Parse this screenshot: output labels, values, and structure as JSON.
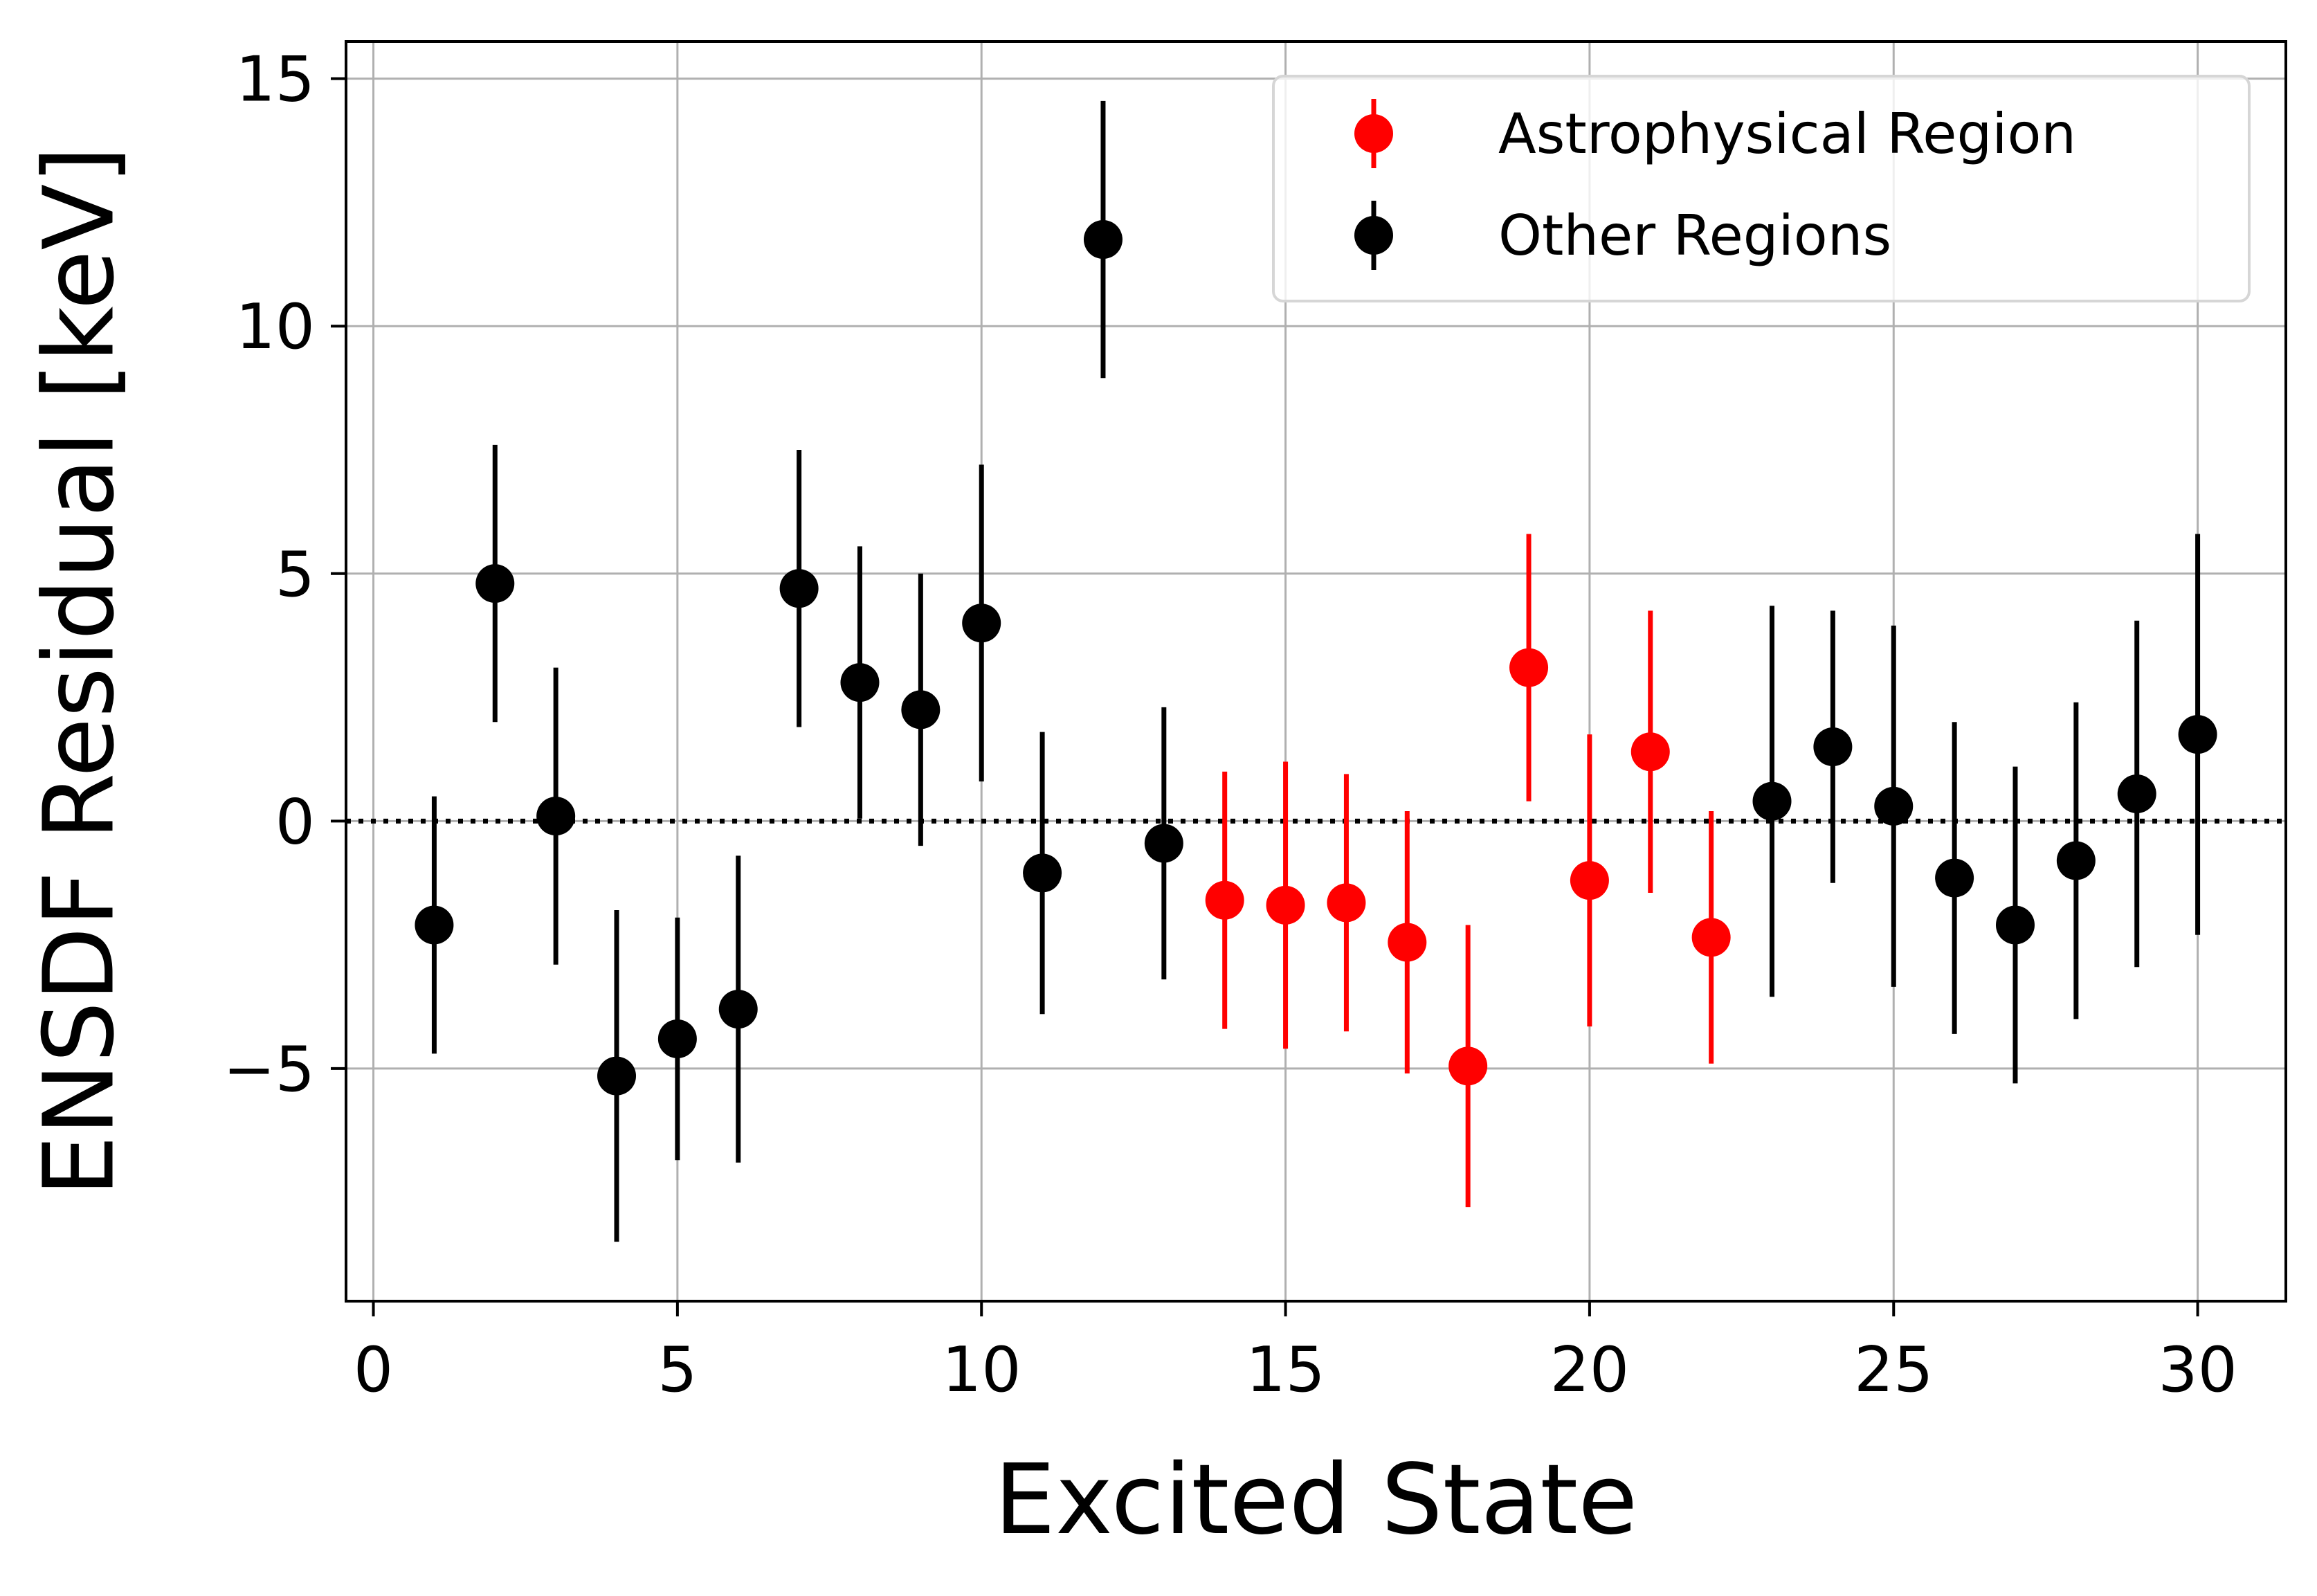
{
  "chart_data": {
    "type": "scatter",
    "xlabel": "Excited State",
    "ylabel": "ENSDF Residual [keV]",
    "xlim": [
      -0.45,
      31.45
    ],
    "ylim": [
      -9.7,
      15.75
    ],
    "x_ticks": [
      0,
      5,
      10,
      15,
      20,
      25,
      30
    ],
    "x_tick_labels": [
      "0",
      "5",
      "10",
      "15",
      "20",
      "25",
      "30"
    ],
    "y_ticks": [
      -5,
      0,
      5,
      10,
      15
    ],
    "y_tick_labels": [
      "−5",
      "0",
      "5",
      "10",
      "15"
    ],
    "grid": true,
    "legend_position": "top-right",
    "reference_line": {
      "y": 0,
      "style": "dotted",
      "color": "#000000"
    },
    "series": [
      {
        "name": "Astrophysical Region",
        "color": "#ff0000",
        "points": [
          {
            "x": 14,
            "y": -1.6,
            "err": 2.6
          },
          {
            "x": 15,
            "y": -1.7,
            "err": 2.9
          },
          {
            "x": 16,
            "y": -1.65,
            "err": 2.6
          },
          {
            "x": 17,
            "y": -2.45,
            "err": 2.65
          },
          {
            "x": 18,
            "y": -4.95,
            "err": 2.85
          },
          {
            "x": 19,
            "y": 3.1,
            "err": 2.7
          },
          {
            "x": 20,
            "y": -1.2,
            "err": 2.95
          },
          {
            "x": 21,
            "y": 1.4,
            "err": 2.85
          },
          {
            "x": 22,
            "y": -2.35,
            "err": 2.55
          }
        ]
      },
      {
        "name": "Other Regions",
        "color": "#000000",
        "points": [
          {
            "x": 1,
            "y": -2.1,
            "err": 2.6
          },
          {
            "x": 2,
            "y": 4.8,
            "err": 2.8
          },
          {
            "x": 3,
            "y": 0.1,
            "err": 3.0
          },
          {
            "x": 4,
            "y": -5.15,
            "err": 3.35
          },
          {
            "x": 5,
            "y": -4.4,
            "err": 2.45
          },
          {
            "x": 6,
            "y": -3.8,
            "err": 3.1
          },
          {
            "x": 7,
            "y": 4.7,
            "err": 2.8
          },
          {
            "x": 8,
            "y": 2.8,
            "err": 2.75
          },
          {
            "x": 9,
            "y": 2.25,
            "err": 2.75
          },
          {
            "x": 10,
            "y": 4.0,
            "err": 3.2
          },
          {
            "x": 11,
            "y": -1.05,
            "err": 2.85
          },
          {
            "x": 12,
            "y": 11.75,
            "err": 2.8
          },
          {
            "x": 13,
            "y": -0.45,
            "err": 2.75
          },
          {
            "x": 23,
            "y": 0.4,
            "err": 3.95
          },
          {
            "x": 24,
            "y": 1.5,
            "err": 2.75
          },
          {
            "x": 25,
            "y": 0.3,
            "err": 3.65
          },
          {
            "x": 26,
            "y": -1.15,
            "err": 3.15
          },
          {
            "x": 27,
            "y": -2.1,
            "err": 3.2
          },
          {
            "x": 28,
            "y": -0.8,
            "err": 3.2
          },
          {
            "x": 29,
            "y": 0.55,
            "err": 3.5
          },
          {
            "x": 30,
            "y": 1.75,
            "err": 4.05
          }
        ]
      }
    ]
  }
}
